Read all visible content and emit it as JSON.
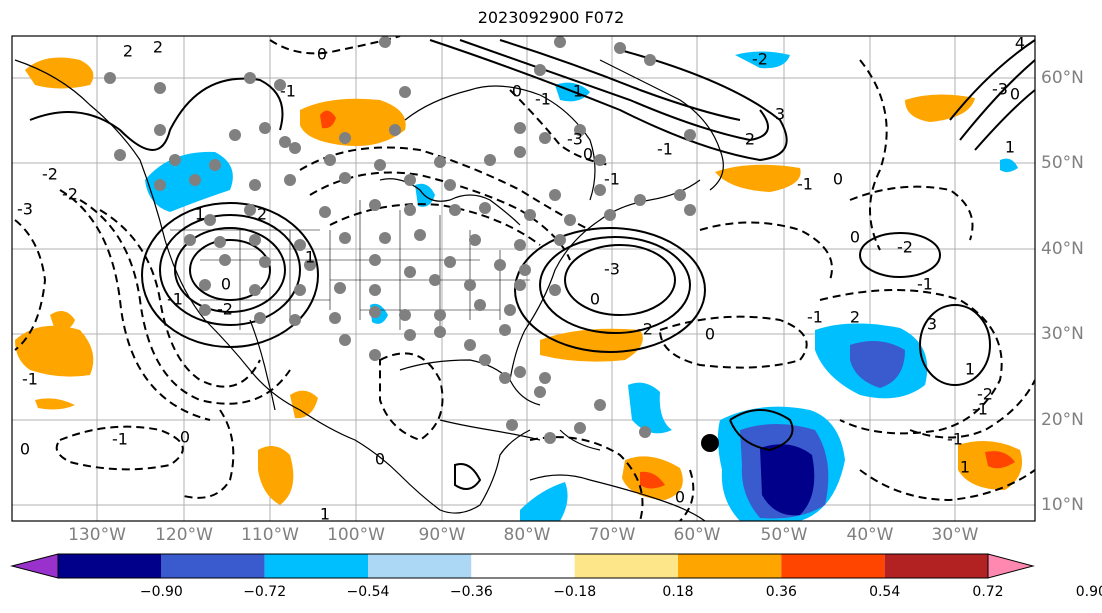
{
  "title": "2023092900 F072",
  "lon_labels": [
    "130°W",
    "120°W",
    "110°W",
    "100°W",
    "90°W",
    "80°W",
    "70°W",
    "60°W",
    "50°W",
    "40°W",
    "30°W"
  ],
  "lat_labels": [
    "60°N",
    "50°N",
    "40°N",
    "30°N",
    "20°N",
    "10°N"
  ],
  "colorbar": {
    "ticks": [
      "−0.90",
      "−0.72",
      "−0.54",
      "−0.36",
      "−0.18",
      "0.18",
      "0.36",
      "0.54",
      "0.72",
      "0.90"
    ],
    "colors": [
      "#9932cc",
      "#00008b",
      "#3a5bcd",
      "#00bfff",
      "#add8f5",
      "#ffffff",
      "#fde68a",
      "#ffa500",
      "#ff4500",
      "#b22222",
      "#ff88b0"
    ]
  },
  "contour_labels": [
    "2",
    "2",
    "0",
    "-1",
    "1",
    "-2",
    "-3",
    "-2",
    "2",
    "0",
    "-1",
    "1",
    "-2",
    "-3",
    "0",
    "-2",
    "0",
    "-1",
    "2",
    "3",
    "1",
    "-2",
    "0",
    "-2",
    "-1",
    "-3",
    "0",
    "1",
    "2",
    "3",
    "4",
    "-2",
    "0",
    "-1",
    "1",
    "-1",
    "0",
    "-1",
    "-3",
    "-1",
    "0",
    "-1",
    "-1",
    "0",
    "1",
    "0",
    "0",
    "1",
    "0",
    "-1",
    "-1"
  ],
  "colors": {
    "land_border": "#000000",
    "grid": "#b0b0b0",
    "station": "#808080",
    "marker": "#000000"
  }
}
